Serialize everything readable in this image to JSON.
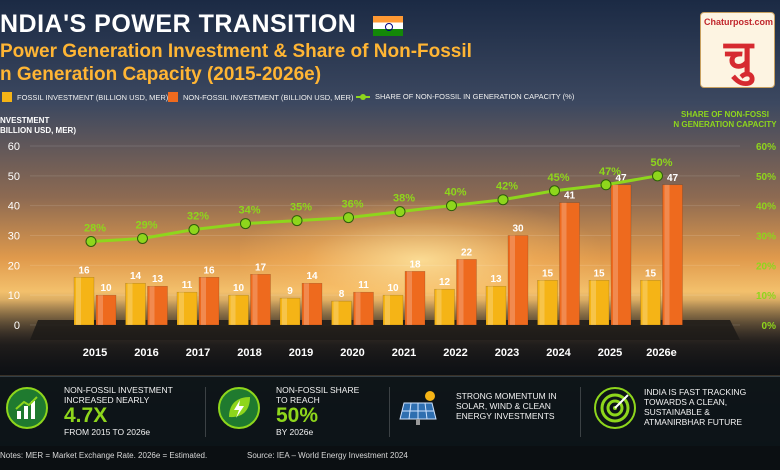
{
  "header": {
    "title": "NDIA'S POWER TRANSITION",
    "subtitle_line1": "Power Generation Investment & Share of Non-Fossil",
    "subtitle_line2": "n Generation Capacity (2015-2026e)"
  },
  "logo": {
    "site": "Chaturpost.com",
    "mark": "चु"
  },
  "legend": {
    "fossil": "FOSSIL INVESTMENT (BILLION USD, MER)",
    "non_fossil": "NON-FOSSIL INVESTMENT (BILLION USD, MER)",
    "share": "SHARE OF NON-FOSSIL IN GENERATION CAPACITY (%)"
  },
  "axes": {
    "left_label_line1": "NVESTMENT",
    "left_label_line2": "BILLION USD, MER)",
    "right_label_line1": "SHARE OF NON-FOSSI",
    "right_label_line2": "N GENERATION CAPACITY"
  },
  "colors": {
    "fossil": "#f5b416",
    "non_fossil": "#ee6a1e",
    "share_line": "#8ed61c"
  },
  "chart_data": {
    "type": "bar",
    "categories": [
      "2015",
      "2016",
      "2017",
      "2018",
      "2019",
      "2020",
      "2021",
      "2022",
      "2023",
      "2024",
      "2025",
      "2026e"
    ],
    "series": [
      {
        "name": "FOSSIL INVESTMENT (BILLION USD, MER)",
        "values": [
          16,
          14,
          11,
          10,
          9,
          8,
          10,
          12,
          13,
          15,
          15,
          15
        ]
      },
      {
        "name": "NON-FOSSIL INVESTMENT (BILLION USD, MER)",
        "values": [
          10,
          13,
          16,
          17,
          14,
          11,
          18,
          22,
          30,
          41,
          47,
          47
        ]
      }
    ],
    "line_series": {
      "name": "SHARE OF NON-FOSSIL IN GENERATION CAPACITY (%)",
      "values": [
        28,
        29,
        32,
        34,
        35,
        36,
        38,
        40,
        42,
        45,
        47,
        50
      ],
      "labels": [
        "28%",
        "29%",
        "32%",
        "34%",
        "35%",
        "36%",
        "38%",
        "40%",
        "42%",
        "45%",
        "47%",
        "50%"
      ]
    },
    "ylim_left": [
      0,
      60
    ],
    "yticks_left": [
      "0",
      "10",
      "20",
      "30",
      "40",
      "50",
      "60"
    ],
    "ylim_right": [
      0,
      60
    ],
    "yticks_right": [
      "0%",
      "10%",
      "20%",
      "30%",
      "40%",
      "50%",
      "60%"
    ]
  },
  "cards": [
    {
      "line1": "NON-FOSSIL INVESTMENT",
      "line2": "INCREASED NEARLY",
      "big": "4.7X",
      "line3": "FROM 2015 TO 2026e"
    },
    {
      "line1": "NON-FOSSIL SHARE",
      "line2": "TO REACH",
      "big": "50%",
      "line3": "BY 2026e"
    },
    {
      "line1": "STRONG MOMENTUM IN",
      "line2": "SOLAR, WIND & CLEAN",
      "line3": "ENERGY INVESTMENTS"
    },
    {
      "line1": "INDIA IS FAST TRACKING",
      "line2": "TOWARDS A CLEAN,",
      "line3": "SUSTAINABLE &",
      "line4": "ATMANIRBHAR FUTURE"
    }
  ],
  "footer": {
    "notes": "Notes: MER = Market Exchange Rate. 2026e = Estimated.",
    "source": "Source: IEA – World Energy Investment 2024"
  }
}
